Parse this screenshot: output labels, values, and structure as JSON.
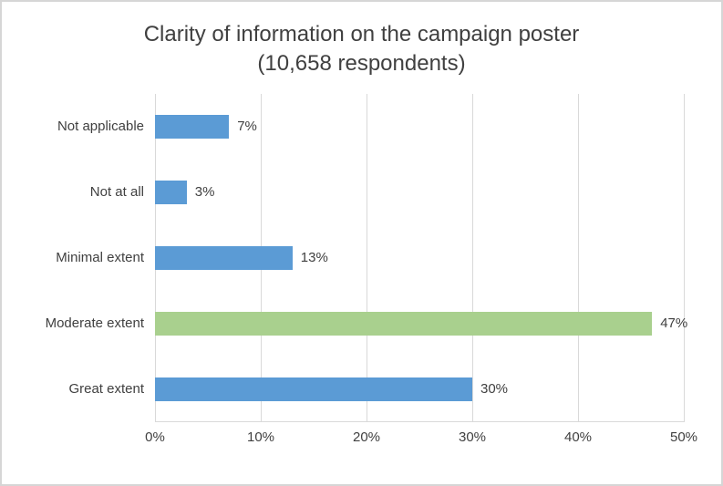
{
  "chart_data": {
    "type": "bar",
    "orientation": "horizontal",
    "title": "Clarity of information on the campaign poster (10,658 respondents)",
    "title_lines": [
      "Clarity of information on the campaign poster",
      "(10,658 respondents)"
    ],
    "categories": [
      "Not applicable",
      "Not at all",
      "Minimal extent",
      "Moderate extent",
      "Great extent"
    ],
    "values": [
      7,
      3,
      13,
      47,
      30
    ],
    "data_labels": [
      "7%",
      "3%",
      "13%",
      "47%",
      "30%"
    ],
    "bar_colors": [
      "#5b9bd5",
      "#5b9bd5",
      "#5b9bd5",
      "#a9d08e",
      "#5b9bd5"
    ],
    "default_color": "#5b9bd5",
    "highlight_color": "#a9d08e",
    "xlabel": "",
    "ylabel": "",
    "xlim": [
      0,
      50
    ],
    "xtick_step": 10,
    "xtick_labels": [
      "0%",
      "10%",
      "20%",
      "30%",
      "40%",
      "50%"
    ],
    "grid": true,
    "gridline_color": "#d9d9d9",
    "legend": "none"
  }
}
